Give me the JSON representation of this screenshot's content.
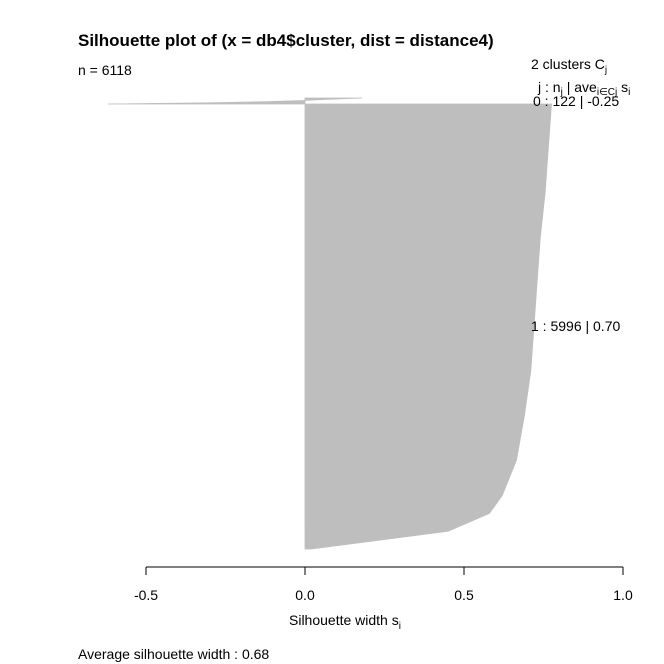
{
  "chart_data": {
    "type": "bar",
    "title": "Silhouette plot of (x = db4$cluster, dist = distance4)",
    "subtitle": "n = 6118",
    "xlabel": "Silhouette width s",
    "xlabel_sub": "i",
    "xlim": [
      -0.5,
      1.0
    ],
    "x_ticks": [
      -0.5,
      0.0,
      0.5,
      1.0
    ],
    "x_tick_labels": [
      "-0.5",
      "0.0",
      "0.5",
      "1.0"
    ],
    "legend_header": {
      "line1": "2  clusters  C",
      "line1_sub": "j",
      "line2_j": "j :  n",
      "line2_nsub": "j",
      "line2_ave": " | ave",
      "line2_avesub": "i∈Cj",
      "line2_s": "  s",
      "line2_ssub": "i"
    },
    "clusters": [
      {
        "cluster": "0",
        "n": 122,
        "avg_width": -0.25,
        "label": "0 :   122  |  -0.25",
        "profile": [
          [
            0.0,
            0.18
          ],
          [
            0.2,
            0.08
          ],
          [
            0.4,
            0.0
          ],
          [
            0.6,
            -0.12
          ],
          [
            0.8,
            -0.3
          ],
          [
            1.0,
            -0.62
          ]
        ]
      },
      {
        "cluster": "1",
        "n": 5996,
        "avg_width": 0.7,
        "label": "1 :   5996  |  0.70",
        "profile": [
          [
            0.0,
            0.775
          ],
          [
            0.1,
            0.765
          ],
          [
            0.2,
            0.755
          ],
          [
            0.3,
            0.74
          ],
          [
            0.4,
            0.73
          ],
          [
            0.5,
            0.72
          ],
          [
            0.6,
            0.71
          ],
          [
            0.7,
            0.69
          ],
          [
            0.8,
            0.665
          ],
          [
            0.88,
            0.62
          ],
          [
            0.92,
            0.58
          ],
          [
            0.96,
            0.45
          ],
          [
            1.0,
            0.02
          ]
        ]
      }
    ],
    "avg_silhouette_label": "Average silhouette width :  0.68",
    "bar_color": "#bebebe"
  }
}
